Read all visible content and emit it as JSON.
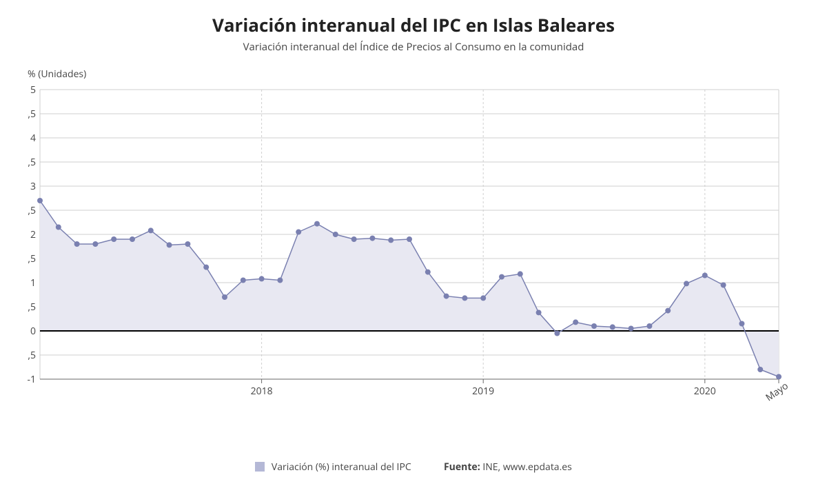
{
  "title": "Variación interanual del IPC en Islas Baleares",
  "subtitle": "Variación interanual del Índice de Precios al Consumo en la comunidad",
  "y_axis_label": "% (Unidades)",
  "title_fontsize": 26,
  "subtitle_fontsize": 15,
  "ylabel_fontsize": 14,
  "legend_series": "Variación (%) interanual del IPC",
  "legend_source_label": "Fuente:",
  "legend_source": "INE, www.epdata.es",
  "chart": {
    "type": "area-line-with-markers",
    "background_color": "#ffffff",
    "grid_color": "#cfcfcf",
    "axis_color": "#666666",
    "zero_line_color": "#000000",
    "area_fill": "#e8e8f2",
    "line_color": "#7a80b0",
    "marker_color": "#7a80b0",
    "swatch_color": "#b4b8d6",
    "line_width": 1.5,
    "marker_radius": 4,
    "tick_fontsize": 14,
    "ylim": [
      -1,
      5
    ],
    "ytick_step": 0.5,
    "x_count": 41,
    "x_ticks": [
      {
        "index": 12,
        "label": "2018"
      },
      {
        "index": 24,
        "label": "2019"
      },
      {
        "index": 36,
        "label": "2020"
      },
      {
        "index": 40,
        "label": "Mayo"
      }
    ],
    "x_major_gridlines": [
      12,
      24,
      36
    ],
    "values": [
      2.7,
      2.15,
      1.8,
      1.8,
      1.9,
      1.9,
      2.08,
      1.78,
      1.8,
      1.32,
      0.7,
      1.05,
      1.08,
      1.05,
      2.05,
      2.22,
      2.0,
      1.9,
      1.92,
      1.88,
      1.9,
      1.22,
      0.72,
      0.68,
      0.68,
      1.12,
      1.18,
      0.38,
      -0.05,
      0.18,
      0.1,
      0.08,
      0.05,
      0.1,
      0.42,
      0.98,
      1.15,
      0.95,
      0.15,
      -0.8,
      -0.95
    ]
  }
}
